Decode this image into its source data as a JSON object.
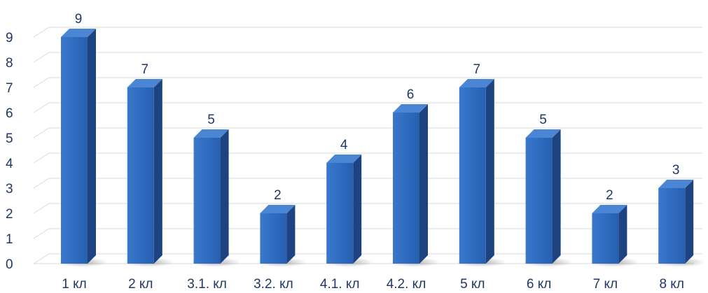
{
  "chart_data": {
    "type": "bar",
    "title": "",
    "xlabel": "",
    "ylabel": "",
    "categories": [
      "1 кл",
      "2 кл",
      "3.1. кл",
      "3.2. кл",
      "4.1. кл",
      "4.2. кл",
      "5 кл",
      "6 кл",
      "7 кл",
      "8 кл"
    ],
    "values": [
      9,
      7,
      5,
      2,
      4,
      6,
      7,
      5,
      2,
      3
    ],
    "ylim": [
      0,
      9
    ],
    "yticks": [
      "0",
      "1",
      "2",
      "3",
      "4",
      "5",
      "6",
      "7",
      "8",
      "9"
    ],
    "grid": true,
    "legend": "none",
    "style": "3d-column",
    "colors": {
      "bar_front": "#2f6cc0",
      "bar_side": "#1d4480",
      "bar_top": "#4a86d4",
      "grid": "#d9d9d9",
      "text": "#1f3864"
    }
  }
}
